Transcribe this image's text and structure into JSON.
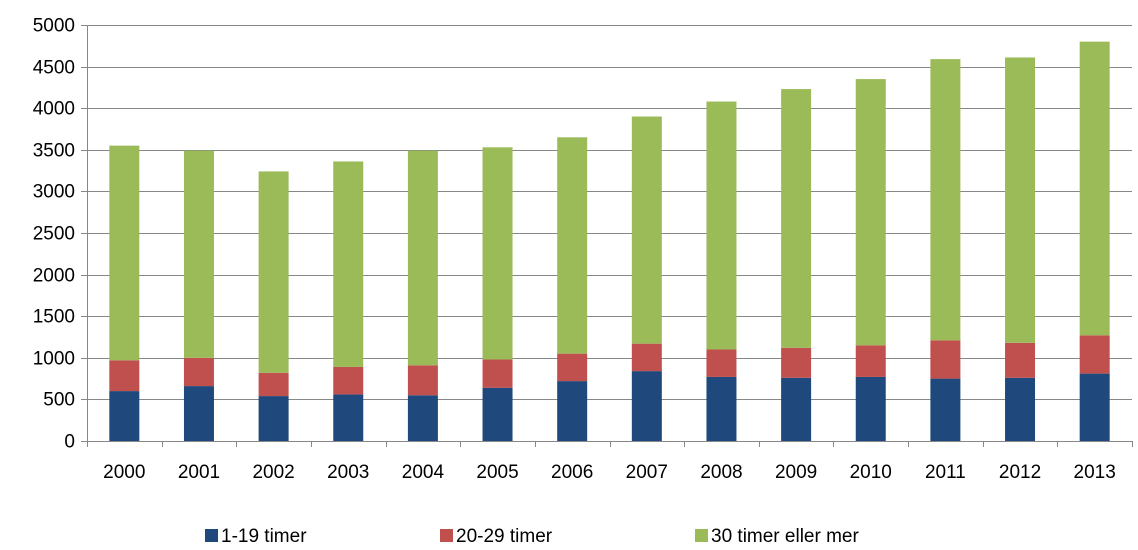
{
  "chart_data": {
    "type": "bar",
    "stacked": true,
    "title": "",
    "xlabel": "",
    "ylabel": "",
    "categories": [
      "2000",
      "2001",
      "2002",
      "2003",
      "2004",
      "2005",
      "2006",
      "2007",
      "2008",
      "2009",
      "2010",
      "2011",
      "2012",
      "2013"
    ],
    "series": [
      {
        "name": "1-19 timer",
        "color": "#1F497D",
        "values": [
          600,
          660,
          540,
          560,
          550,
          640,
          720,
          840,
          770,
          760,
          770,
          750,
          760,
          810
        ]
      },
      {
        "name": "20-29 timer",
        "color": "#C0504D",
        "values": [
          370,
          340,
          280,
          330,
          360,
          340,
          330,
          330,
          330,
          360,
          380,
          460,
          420,
          460
        ]
      },
      {
        "name": "30 timer eller mer",
        "color": "#9BBB59",
        "values": [
          2580,
          2490,
          2420,
          2470,
          2580,
          2550,
          2600,
          2730,
          2980,
          3110,
          3200,
          3380,
          3430,
          3530
        ]
      }
    ],
    "ylim": [
      0,
      5000
    ],
    "yticks": [
      0,
      500,
      1000,
      1500,
      2000,
      2500,
      3000,
      3500,
      4000,
      4500,
      5000
    ],
    "grid": true,
    "legend_position": "bottom"
  }
}
